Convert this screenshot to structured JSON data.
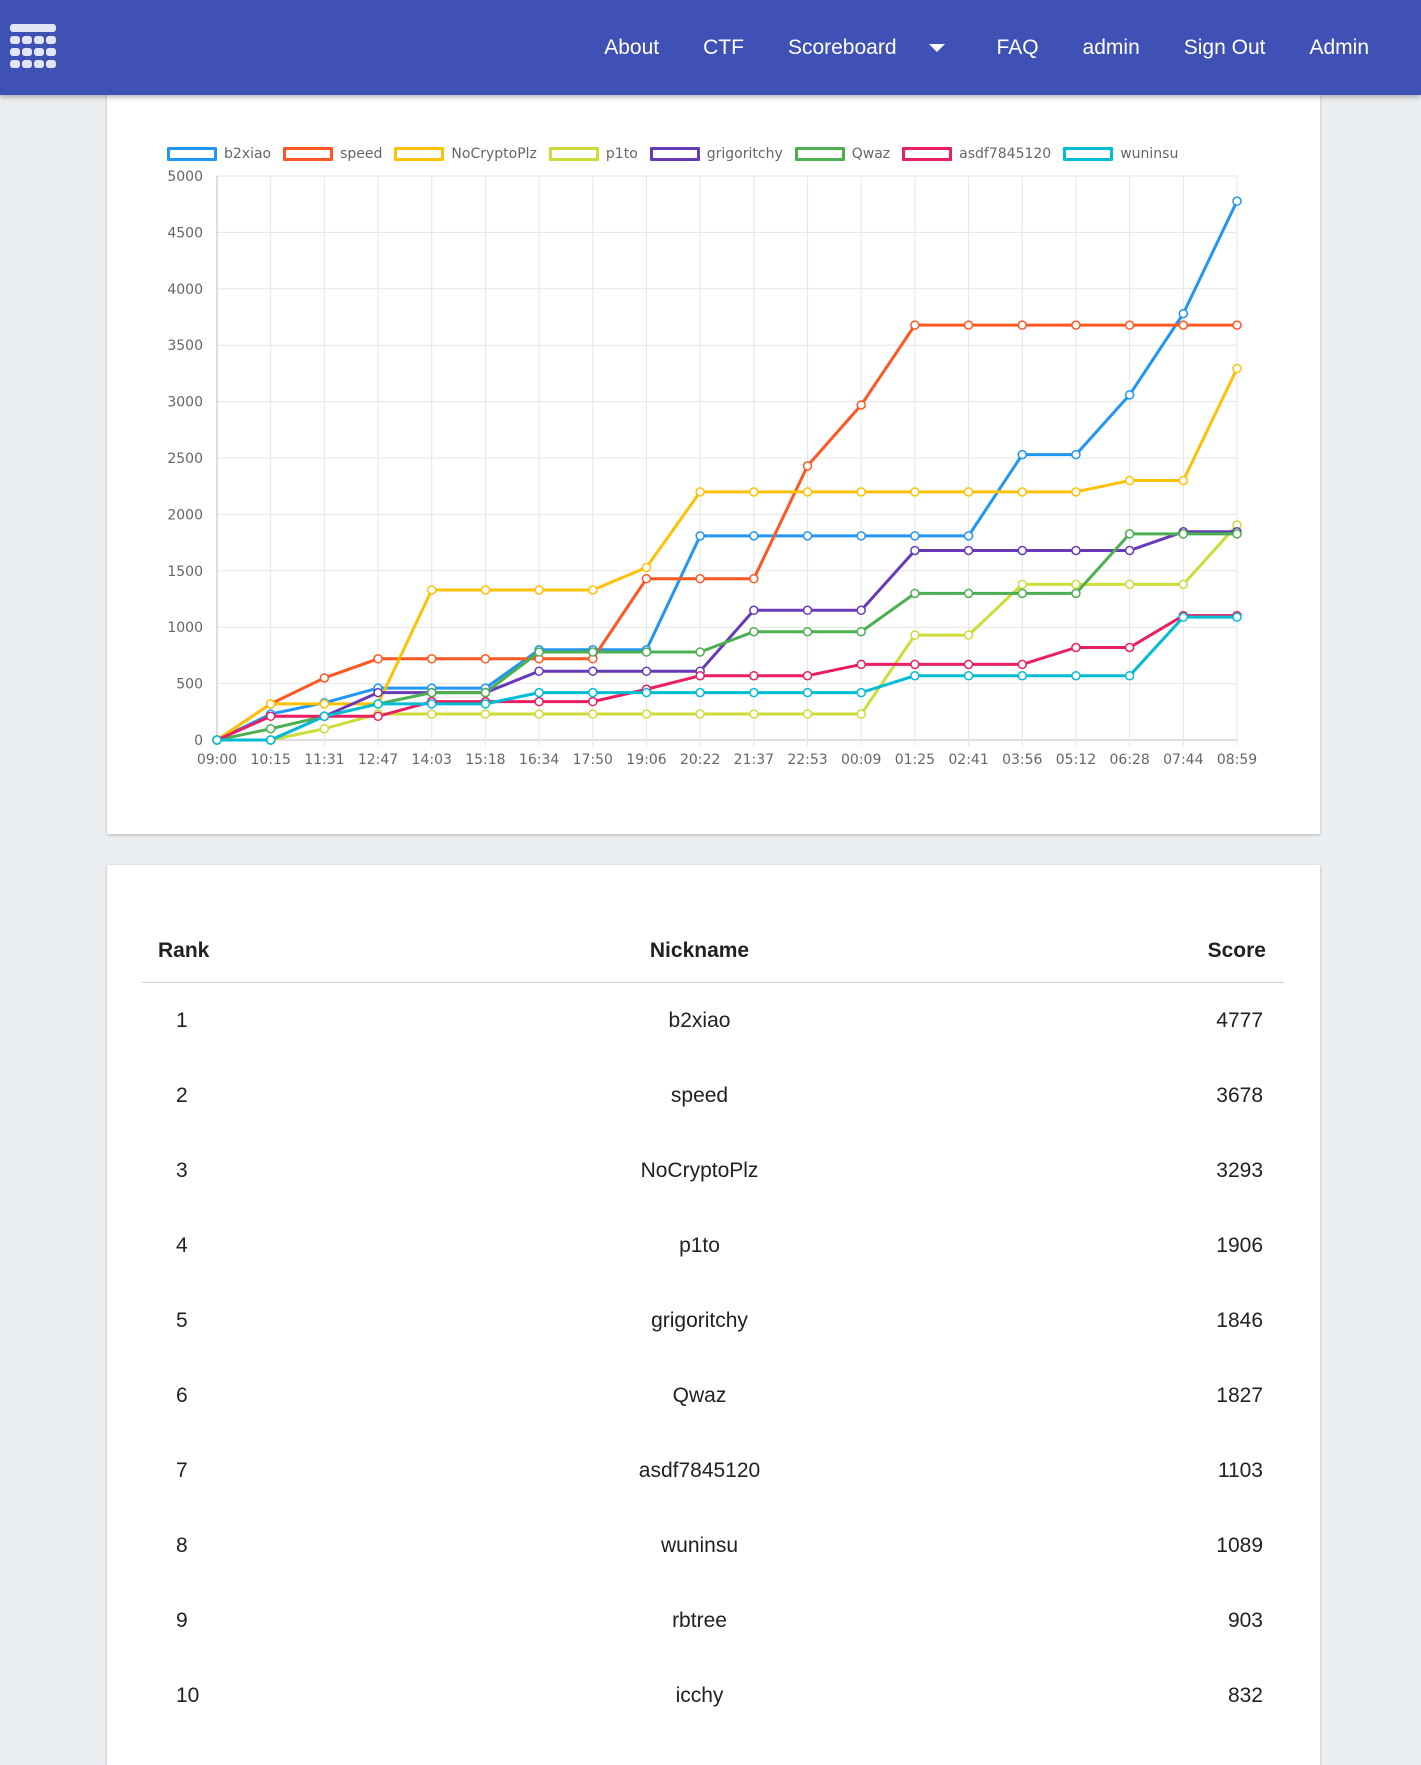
{
  "nav": {
    "logo_icon": "grid-logo-icon",
    "items": [
      {
        "label": "About"
      },
      {
        "label": "CTF"
      },
      {
        "label": "Scoreboard",
        "dropdown": true
      },
      {
        "label": "FAQ"
      },
      {
        "label": "admin"
      },
      {
        "label": "Sign Out"
      },
      {
        "label": "Admin"
      }
    ]
  },
  "chart_data": {
    "type": "line",
    "title": "",
    "xlabel": "",
    "ylabel": "",
    "ylim": [
      0,
      5000
    ],
    "yticks": [
      0,
      500,
      1000,
      1500,
      2000,
      2500,
      3000,
      3500,
      4000,
      4500,
      5000
    ],
    "categories": [
      "09:00",
      "10:15",
      "11:31",
      "12:47",
      "14:03",
      "15:18",
      "16:34",
      "17:50",
      "19:06",
      "20:22",
      "21:37",
      "22:53",
      "00:09",
      "01:25",
      "02:41",
      "03:56",
      "05:12",
      "06:28",
      "07:44",
      "08:59"
    ],
    "grid": true,
    "legend_position": "top",
    "series": [
      {
        "name": "b2xiao",
        "color": "#2196f3",
        "values": [
          0,
          230,
          330,
          460,
          460,
          460,
          800,
          800,
          800,
          1810,
          1810,
          1810,
          1810,
          1810,
          1810,
          2530,
          2530,
          3060,
          3780,
          4777
        ]
      },
      {
        "name": "speed",
        "color": "#ff5722",
        "values": [
          0,
          320,
          550,
          720,
          720,
          720,
          720,
          720,
          1430,
          1430,
          1430,
          2430,
          2970,
          3678,
          3678,
          3678,
          3678,
          3678,
          3678,
          3678
        ]
      },
      {
        "name": "NoCryptoPlz",
        "color": "#ffc107",
        "values": [
          0,
          320,
          320,
          320,
          1330,
          1330,
          1330,
          1330,
          1530,
          2200,
          2200,
          2200,
          2200,
          2200,
          2200,
          2200,
          2200,
          2300,
          2300,
          3293
        ]
      },
      {
        "name": "p1to",
        "color": "#cddc39",
        "values": [
          0,
          0,
          100,
          230,
          230,
          230,
          230,
          230,
          230,
          230,
          230,
          230,
          230,
          930,
          930,
          1380,
          1380,
          1380,
          1380,
          1906
        ]
      },
      {
        "name": "grigoritchy",
        "color": "#673ab7",
        "values": [
          0,
          0,
          210,
          420,
          420,
          420,
          610,
          610,
          610,
          610,
          1150,
          1150,
          1150,
          1680,
          1680,
          1680,
          1680,
          1680,
          1846,
          1846
        ]
      },
      {
        "name": "Qwaz",
        "color": "#4caf50",
        "values": [
          0,
          100,
          210,
          320,
          420,
          420,
          780,
          780,
          780,
          780,
          960,
          960,
          960,
          1300,
          1300,
          1300,
          1300,
          1827,
          1827,
          1827
        ]
      },
      {
        "name": "asdf7845120",
        "color": "#e91e63",
        "values": [
          0,
          210,
          210,
          210,
          340,
          340,
          340,
          340,
          450,
          570,
          570,
          570,
          670,
          670,
          670,
          670,
          820,
          820,
          1103,
          1103
        ]
      },
      {
        "name": "wuninsu",
        "color": "#00bcd4",
        "values": [
          0,
          0,
          210,
          320,
          320,
          320,
          420,
          420,
          420,
          420,
          420,
          420,
          420,
          570,
          570,
          570,
          570,
          570,
          1089,
          1089
        ]
      }
    ]
  },
  "table": {
    "headers": {
      "rank": "Rank",
      "nickname": "Nickname",
      "score": "Score"
    },
    "rows": [
      {
        "rank": "1",
        "nickname": "b2xiao",
        "score": "4777"
      },
      {
        "rank": "2",
        "nickname": "speed",
        "score": "3678"
      },
      {
        "rank": "3",
        "nickname": "NoCryptoPlz",
        "score": "3293"
      },
      {
        "rank": "4",
        "nickname": "p1to",
        "score": "1906"
      },
      {
        "rank": "5",
        "nickname": "grigoritchy",
        "score": "1846"
      },
      {
        "rank": "6",
        "nickname": "Qwaz",
        "score": "1827"
      },
      {
        "rank": "7",
        "nickname": "asdf7845120",
        "score": "1103"
      },
      {
        "rank": "8",
        "nickname": "wuninsu",
        "score": "1089"
      },
      {
        "rank": "9",
        "nickname": "rbtree",
        "score": "903"
      },
      {
        "rank": "10",
        "nickname": "icchy",
        "score": "832"
      }
    ]
  }
}
